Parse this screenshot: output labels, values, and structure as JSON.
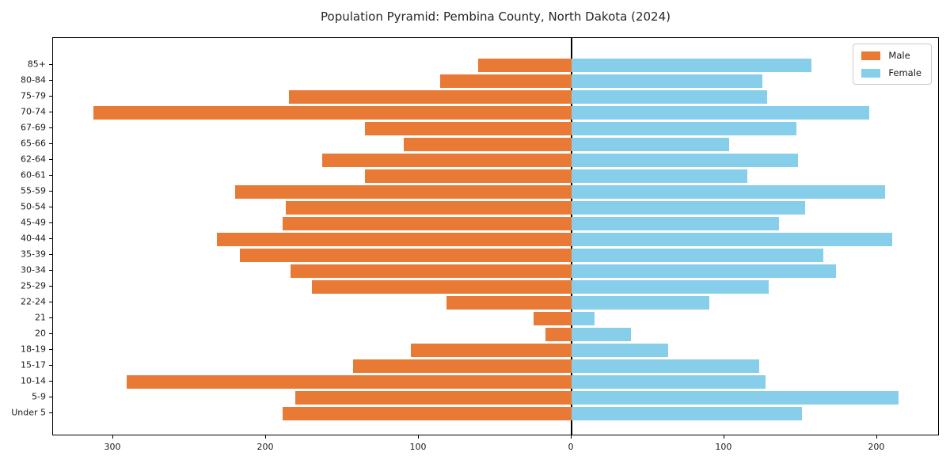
{
  "title": "Population Pyramid: Pembina County, North Dakota (2024)",
  "legend": {
    "male_label": "Male",
    "female_label": "Female"
  },
  "colors": {
    "male": "#e97a35",
    "female": "#87ceeb",
    "axis": "#000000",
    "text": "#1a1a1a"
  },
  "chart_data": {
    "type": "bar",
    "subtype": "population-pyramid",
    "title": "Population Pyramid: Pembina County, North Dakota (2024)",
    "categories_top_to_bottom": [
      "85+",
      "80-84",
      "75-79",
      "70-74",
      "67-69",
      "65-66",
      "62-64",
      "60-61",
      "55-59",
      "50-54",
      "45-49",
      "40-44",
      "35-39",
      "30-34",
      "25-29",
      "22-24",
      "21",
      "20",
      "18-19",
      "15-17",
      "10-14",
      "5-9",
      "Under 5"
    ],
    "series": [
      {
        "name": "Male",
        "side": "left",
        "color": "#e97a35",
        "values": [
          61,
          86,
          185,
          313,
          135,
          110,
          163,
          135,
          220,
          187,
          189,
          232,
          217,
          184,
          170,
          82,
          25,
          17,
          105,
          143,
          291,
          181,
          189
        ]
      },
      {
        "name": "Female",
        "side": "right",
        "color": "#87ceeb",
        "values": [
          157,
          125,
          128,
          195,
          147,
          103,
          148,
          115,
          205,
          153,
          136,
          210,
          165,
          173,
          129,
          90,
          15,
          39,
          63,
          123,
          127,
          214,
          151
        ]
      }
    ],
    "x_ticks": [
      {
        "label": "300",
        "value": -300
      },
      {
        "label": "200",
        "value": -200
      },
      {
        "label": "100",
        "value": -100
      },
      {
        "label": "0",
        "value": 0
      },
      {
        "label": "100",
        "value": 100
      },
      {
        "label": "200",
        "value": 200
      }
    ],
    "xlim": [
      -339.4,
      241.0
    ],
    "grid": false,
    "legend_position": "upper right",
    "xlabel": "",
    "ylabel": ""
  }
}
